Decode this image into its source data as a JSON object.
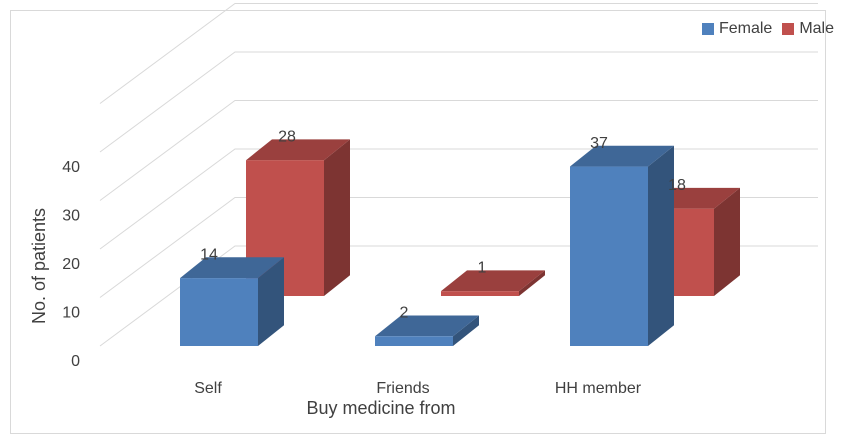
{
  "chart_data": {
    "type": "bar",
    "categories": [
      "Self",
      "Friends",
      "HH member"
    ],
    "series": [
      {
        "name": "Female",
        "values": [
          14,
          2,
          37
        ],
        "color": "#4f81bd"
      },
      {
        "name": "Male",
        "values": [
          28,
          1,
          18
        ],
        "color": "#c0504d"
      }
    ],
    "xlabel": "Buy medicine from",
    "ylabel": "No. of patients",
    "y_ticks": [
      0,
      10,
      20,
      30,
      40
    ],
    "ylim": [
      0,
      50
    ],
    "grid": true,
    "legend_position": "top-right",
    "style": "3d-clustered-column"
  }
}
